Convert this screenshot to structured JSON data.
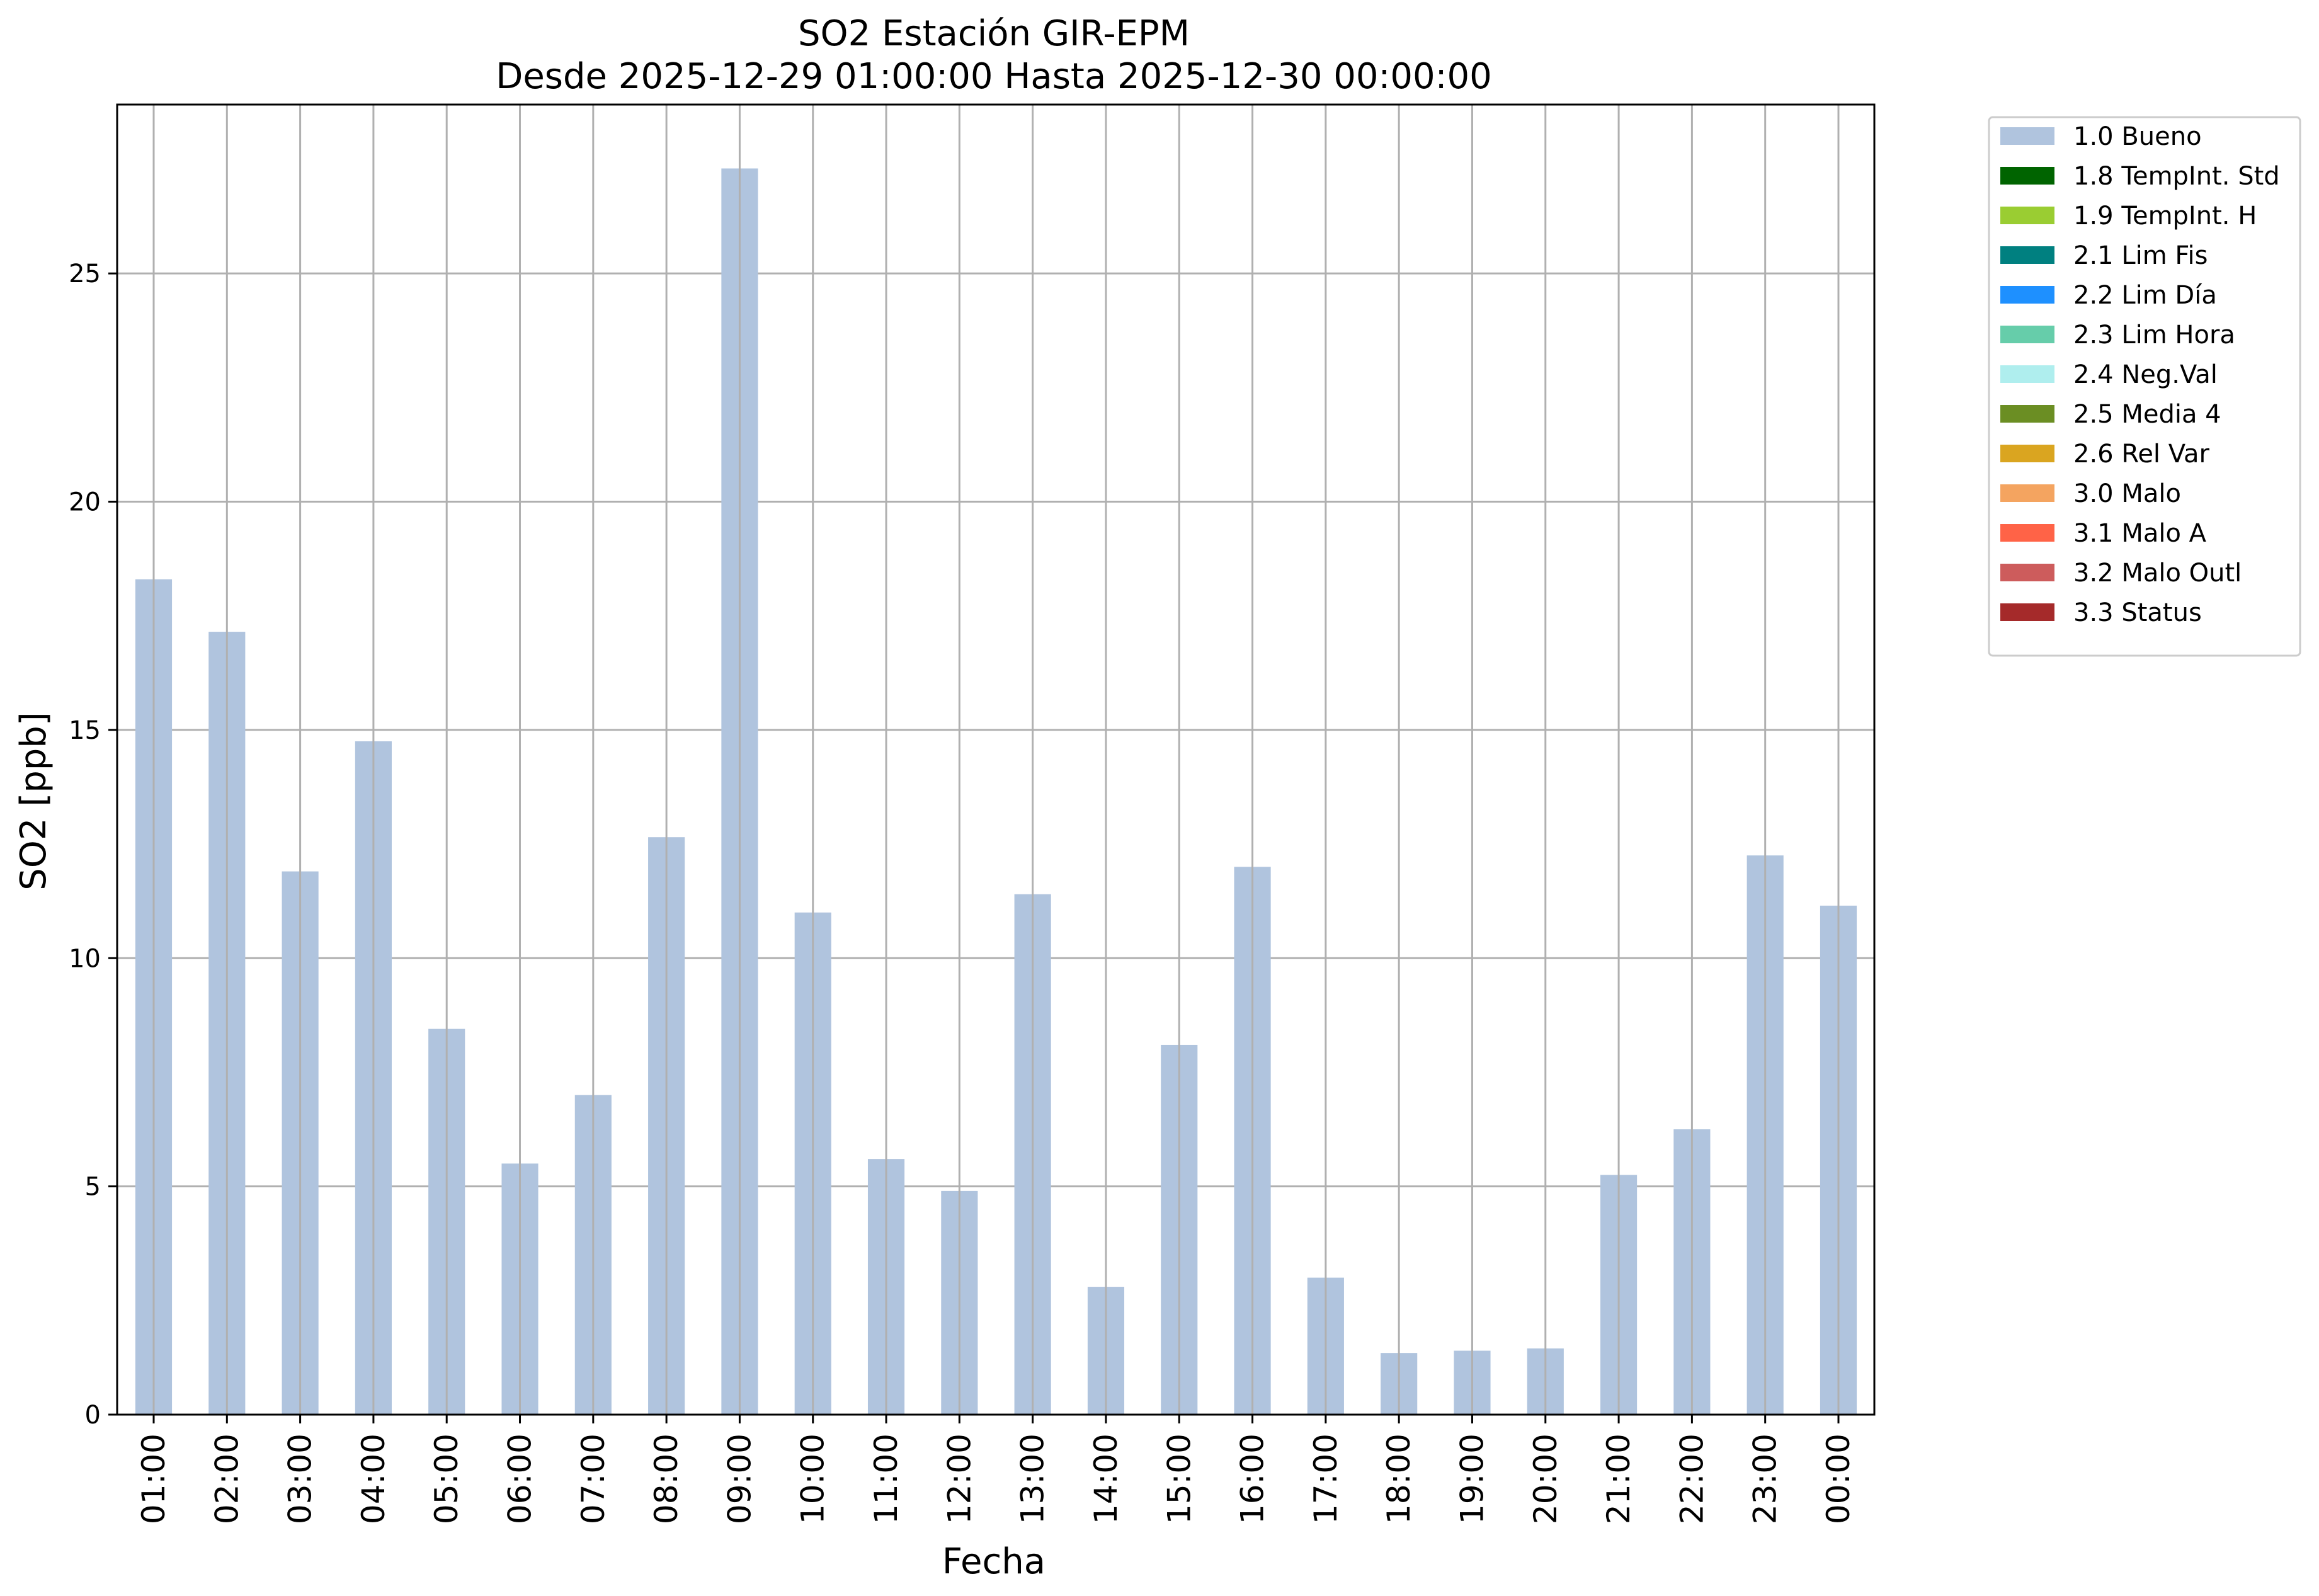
{
  "chart_data": {
    "type": "bar",
    "title": "SO2 Estación GIR-EPM",
    "subtitle": "Desde 2025-12-29 01:00:00 Hasta 2025-12-30 00:00:00",
    "xlabel": "Fecha",
    "ylabel": "SO2 [ppb]",
    "ylim": [
      0,
      28.7
    ],
    "yticks": [
      0,
      5,
      10,
      15,
      20,
      25
    ],
    "grid": true,
    "legend_position": "outside-top-right",
    "categories": [
      "01:00",
      "02:00",
      "03:00",
      "04:00",
      "05:00",
      "06:00",
      "07:00",
      "08:00",
      "09:00",
      "10:00",
      "11:00",
      "12:00",
      "13:00",
      "14:00",
      "15:00",
      "16:00",
      "17:00",
      "18:00",
      "19:00",
      "20:00",
      "21:00",
      "22:00",
      "23:00",
      "00:00"
    ],
    "series": [
      {
        "name": "1.0 Bueno",
        "color": "#b0c4de",
        "values": [
          18.3,
          17.15,
          11.9,
          14.75,
          8.45,
          5.5,
          7.0,
          12.65,
          27.3,
          11.0,
          5.6,
          4.9,
          11.4,
          2.8,
          8.1,
          12.0,
          3.0,
          1.35,
          1.4,
          1.45,
          5.25,
          6.25,
          12.25,
          11.15
        ]
      }
    ],
    "legend": [
      {
        "label": "1.0 Bueno",
        "color": "#b0c4de"
      },
      {
        "label": "1.8 TempInt. Std",
        "color": "#006400"
      },
      {
        "label": "1.9 TempInt. H",
        "color": "#9acd32"
      },
      {
        "label": "2.1 Lim Fis",
        "color": "#008080"
      },
      {
        "label": "2.2 Lim Día",
        "color": "#1e90ff"
      },
      {
        "label": "2.3 Lim Hora",
        "color": "#66cdaa"
      },
      {
        "label": "2.4 Neg.Val",
        "color": "#afeeee"
      },
      {
        "label": "2.5 Media 4",
        "color": "#6b8e23"
      },
      {
        "label": "2.6 Rel Var",
        "color": "#daa520"
      },
      {
        "label": "3.0 Malo",
        "color": "#f4a460"
      },
      {
        "label": "3.1 Malo A",
        "color": "#ff6347"
      },
      {
        "label": "3.2 Malo Outl",
        "color": "#cd5c5c"
      },
      {
        "label": "3.3 Status",
        "color": "#a52a2a"
      }
    ]
  }
}
